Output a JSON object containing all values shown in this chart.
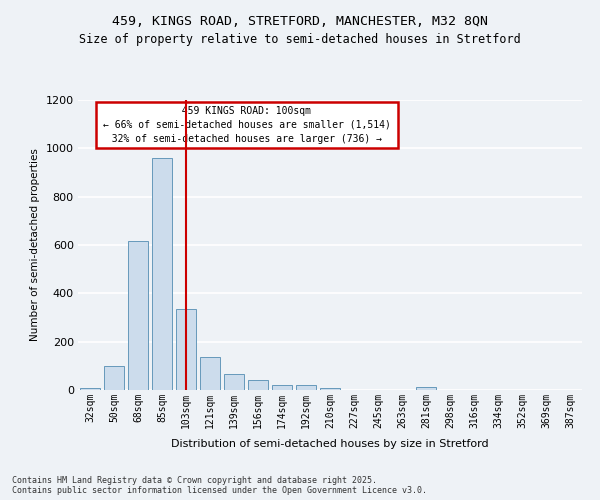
{
  "title_line1": "459, KINGS ROAD, STRETFORD, MANCHESTER, M32 8QN",
  "title_line2": "Size of property relative to semi-detached houses in Stretford",
  "xlabel": "Distribution of semi-detached houses by size in Stretford",
  "ylabel": "Number of semi-detached properties",
  "categories": [
    "32sqm",
    "50sqm",
    "68sqm",
    "85sqm",
    "103sqm",
    "121sqm",
    "139sqm",
    "156sqm",
    "174sqm",
    "192sqm",
    "210sqm",
    "227sqm",
    "245sqm",
    "263sqm",
    "281sqm",
    "298sqm",
    "316sqm",
    "334sqm",
    "352sqm",
    "369sqm",
    "387sqm"
  ],
  "values": [
    8,
    100,
    615,
    960,
    335,
    135,
    65,
    40,
    22,
    22,
    8,
    0,
    0,
    0,
    12,
    0,
    0,
    0,
    0,
    0,
    0
  ],
  "bar_color": "#ccdcec",
  "bar_edge_color": "#6699bb",
  "vline_index": 4,
  "vline_color": "#cc0000",
  "annotation_title": "459 KINGS ROAD: 100sqm",
  "annotation_line1": "← 66% of semi-detached houses are smaller (1,514)",
  "annotation_line2": "32% of semi-detached houses are larger (736) →",
  "annotation_box_color": "#cc0000",
  "ylim": [
    0,
    1200
  ],
  "yticks": [
    0,
    200,
    400,
    600,
    800,
    1000,
    1200
  ],
  "footer_line1": "Contains HM Land Registry data © Crown copyright and database right 2025.",
  "footer_line2": "Contains public sector information licensed under the Open Government Licence v3.0.",
  "bg_color": "#eef2f6",
  "grid_color": "#ffffff",
  "title_fontsize": 9.5,
  "subtitle_fontsize": 8.5
}
